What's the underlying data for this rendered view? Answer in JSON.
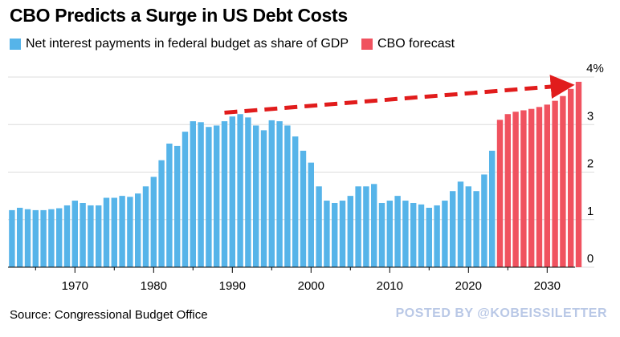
{
  "title": "CBO Predicts a Surge in US Debt Costs",
  "legend": {
    "historical_label": "Net interest payments in federal budget as share of GDP",
    "forecast_label": "CBO forecast"
  },
  "source": "Source: Congressional Budget Office",
  "watermark": "POSTED BY @KOBEISSILETTER",
  "colors": {
    "historical": "#56b4e9",
    "forecast": "#f0525f",
    "arrow": "#e11c1c"
  },
  "chart_data": {
    "type": "bar",
    "title": "CBO Predicts a Surge in US Debt Costs",
    "xlabel": "",
    "ylabel": "",
    "ylim": [
      0,
      4
    ],
    "xlim": [
      1962,
      2034
    ],
    "x_ticks": [
      1970,
      1980,
      1990,
      2000,
      2010,
      2020,
      2030
    ],
    "x_tick_labels": [
      "1970",
      "1980",
      "1990",
      "2000",
      "2010",
      "2020",
      "2030"
    ],
    "y_ticks": [
      0,
      1,
      2,
      3,
      4
    ],
    "y_tick_labels": [
      "0",
      "1",
      "2",
      "3",
      "4%"
    ],
    "series": [
      {
        "name": "Net interest payments in federal budget as share of GDP",
        "x": [
          1962,
          1963,
          1964,
          1965,
          1966,
          1967,
          1968,
          1969,
          1970,
          1971,
          1972,
          1973,
          1974,
          1975,
          1976,
          1977,
          1978,
          1979,
          1980,
          1981,
          1982,
          1983,
          1984,
          1985,
          1986,
          1987,
          1988,
          1989,
          1990,
          1991,
          1992,
          1993,
          1994,
          1995,
          1996,
          1997,
          1998,
          1999,
          2000,
          2001,
          2002,
          2003,
          2004,
          2005,
          2006,
          2007,
          2008,
          2009,
          2010,
          2011,
          2012,
          2013,
          2014,
          2015,
          2016,
          2017,
          2018,
          2019,
          2020,
          2021,
          2022,
          2023
        ],
        "values": [
          1.2,
          1.25,
          1.22,
          1.2,
          1.2,
          1.22,
          1.24,
          1.3,
          1.4,
          1.35,
          1.3,
          1.3,
          1.46,
          1.46,
          1.5,
          1.48,
          1.55,
          1.7,
          1.9,
          2.25,
          2.6,
          2.55,
          2.85,
          3.07,
          3.05,
          2.95,
          2.98,
          3.07,
          3.17,
          3.22,
          3.15,
          2.98,
          2.88,
          3.09,
          3.07,
          2.98,
          2.75,
          2.45,
          2.2,
          1.7,
          1.4,
          1.35,
          1.4,
          1.5,
          1.7,
          1.7,
          1.75,
          1.35,
          1.4,
          1.5,
          1.4,
          1.35,
          1.32,
          1.25,
          1.3,
          1.4,
          1.6,
          1.8,
          1.7,
          1.6,
          1.95,
          2.45
        ]
      },
      {
        "name": "CBO forecast",
        "x": [
          2024,
          2025,
          2026,
          2027,
          2028,
          2029,
          2030,
          2031,
          2032,
          2033,
          2034
        ],
        "values": [
          3.1,
          3.22,
          3.27,
          3.3,
          3.33,
          3.37,
          3.42,
          3.5,
          3.6,
          3.75,
          3.9
        ]
      }
    ],
    "annotations": [
      {
        "type": "dashed-arrow",
        "from": [
          1989,
          3.25
        ],
        "to": [
          2033,
          3.85
        ]
      }
    ]
  }
}
